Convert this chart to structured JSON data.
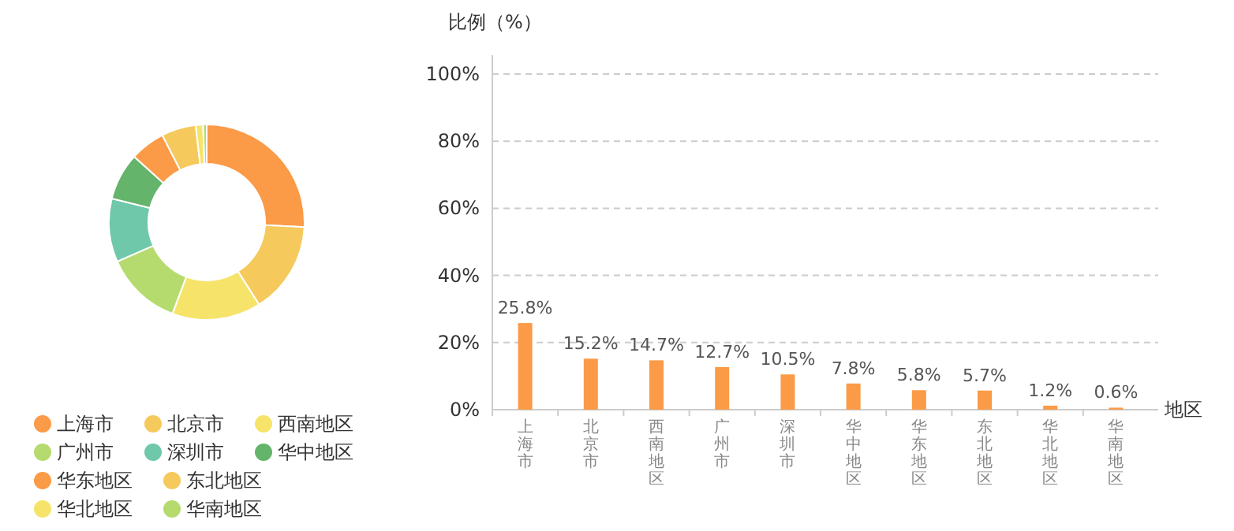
{
  "chart_data": [
    {
      "type": "donut",
      "categories": [
        "上海市",
        "北京市",
        "西南地区",
        "广州市",
        "深圳市",
        "华中地区",
        "华东地区",
        "东北地区",
        "华北地区",
        "华南地区"
      ],
      "values": [
        25.8,
        15.2,
        14.7,
        12.7,
        10.5,
        7.8,
        5.8,
        5.7,
        1.2,
        0.6
      ],
      "colors": [
        "#fb9a47",
        "#f5c95c",
        "#f6e46a",
        "#b5db6e",
        "#6ec8a9",
        "#64b46b",
        "#fb9a47",
        "#f5c95c",
        "#f6e46a",
        "#b5db6e"
      ],
      "legend": "bottom left"
    },
    {
      "type": "bar",
      "ylabel": "比例（%）",
      "xlabel": "地区",
      "categories": [
        "上海市",
        "北京市",
        "西南地区",
        "广州市",
        "深圳市",
        "华中地区",
        "华东地区",
        "东北地区",
        "华北地区",
        "华南地区"
      ],
      "series": [
        {
          "color": "#fb9a47",
          "values": [
            25.8,
            15.2,
            14.7,
            12.7,
            10.5,
            7.8,
            5.8,
            5.7,
            1.2,
            0.6
          ],
          "value_labels": [
            "25.8%",
            "15.2%",
            "14.7%",
            "12.7%",
            "10.5%",
            "7.8%",
            "5.8%",
            "5.7%",
            "1.2%",
            "0.6%"
          ]
        }
      ],
      "ylim": [
        0,
        100
      ],
      "yticks": [
        {
          "value": 0,
          "label": "0%"
        },
        {
          "value": 20,
          "label": "20%"
        },
        {
          "value": 40,
          "label": "40%"
        },
        {
          "value": 60,
          "label": "60%"
        },
        {
          "value": 80,
          "label": "80%"
        },
        {
          "value": 100,
          "label": "100%"
        }
      ],
      "grid": "y"
    }
  ]
}
